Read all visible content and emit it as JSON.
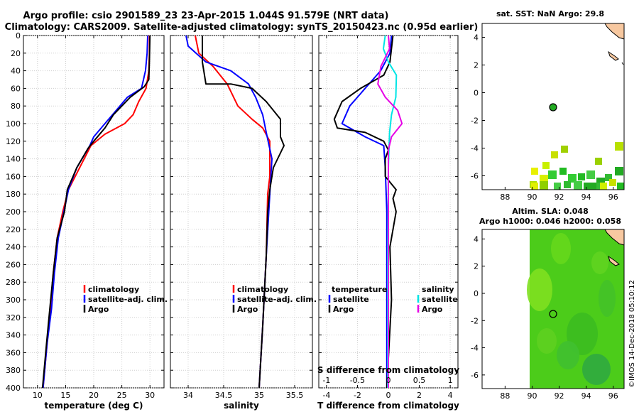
{
  "title": {
    "line1": "Argo profile: csio 2901589_23 23-Apr-2015 1.044S 91.579E (NRT data)",
    "line2": "Climatology: CARS2009. Satellite-adjusted climatology: synTS_20150423.nc (0.95d earlier)"
  },
  "colors": {
    "climatology": "#ff0000",
    "satellite": "#0000ff",
    "argo": "#000000",
    "sat_salinity": "#00e5e5",
    "argo_salinity": "#e600e6",
    "land": "#f7c8a0"
  },
  "depth_ticks": [
    "0",
    "20",
    "40",
    "60",
    "80",
    "100",
    "120",
    "140",
    "160",
    "180",
    "200",
    "220",
    "240",
    "260",
    "280",
    "300",
    "320",
    "340",
    "360",
    "380",
    "400"
  ],
  "chart_data": [
    {
      "type": "line",
      "xlabel": "temperature (deg C)",
      "xlim": [
        7.5,
        32.5
      ],
      "ylim": [
        0,
        400
      ],
      "xticks": [
        "10",
        "15",
        "20",
        "25",
        "30"
      ],
      "legend": [
        "climatology",
        "satellite-adj. clim.",
        "Argo"
      ],
      "series": [
        {
          "name": "climatology",
          "points": [
            [
              29.9,
              0
            ],
            [
              29.9,
              20
            ],
            [
              29.8,
              40
            ],
            [
              29.3,
              60
            ],
            [
              28.0,
              75
            ],
            [
              27.0,
              90
            ],
            [
              25.5,
              100
            ],
            [
              22.0,
              112
            ],
            [
              19.5,
              125
            ],
            [
              17.5,
              150
            ],
            [
              15.5,
              175
            ],
            [
              14.5,
              200
            ],
            [
              13.5,
              230
            ],
            [
              12.8,
              270
            ],
            [
              12.3,
              310
            ],
            [
              11.7,
              350
            ],
            [
              11.0,
              400
            ]
          ]
        },
        {
          "name": "satellite-adj. clim.",
          "points": [
            [
              29.6,
              0
            ],
            [
              29.5,
              20
            ],
            [
              29.2,
              40
            ],
            [
              28.5,
              60
            ],
            [
              26.0,
              70
            ],
            [
              24.0,
              85
            ],
            [
              22.0,
              100
            ],
            [
              20.0,
              115
            ],
            [
              19.3,
              125
            ],
            [
              17.0,
              150
            ],
            [
              15.5,
              175
            ],
            [
              14.7,
              200
            ],
            [
              13.7,
              230
            ],
            [
              13.0,
              270
            ],
            [
              12.5,
              310
            ],
            [
              11.7,
              350
            ],
            [
              11.0,
              400
            ]
          ]
        },
        {
          "name": "Argo",
          "points": [
            [
              30.0,
              0
            ],
            [
              29.9,
              30
            ],
            [
              29.8,
              50
            ],
            [
              29.0,
              58
            ],
            [
              26.5,
              70
            ],
            [
              23.5,
              90
            ],
            [
              22.0,
              105
            ],
            [
              20.0,
              120
            ],
            [
              19.0,
              128
            ],
            [
              17.0,
              150
            ],
            [
              15.3,
              175
            ],
            [
              14.8,
              200
            ],
            [
              13.5,
              230
            ],
            [
              12.8,
              270
            ],
            [
              12.2,
              310
            ],
            [
              11.6,
              350
            ],
            [
              10.9,
              400
            ]
          ]
        }
      ]
    },
    {
      "type": "line",
      "xlabel": "salinity",
      "xlim": [
        33.75,
        35.75
      ],
      "ylim": [
        0,
        400
      ],
      "xticks": [
        "34",
        "34.5",
        "35",
        "35.5"
      ],
      "legend": [
        "climatology",
        "satellite-adj. clim.",
        "Argo"
      ],
      "series": [
        {
          "name": "climatology",
          "points": [
            [
              34.1,
              0
            ],
            [
              34.15,
              20
            ],
            [
              34.35,
              35
            ],
            [
              34.55,
              55
            ],
            [
              34.7,
              80
            ],
            [
              34.9,
              95
            ],
            [
              35.05,
              105
            ],
            [
              35.15,
              120
            ],
            [
              35.15,
              160
            ],
            [
              35.12,
              180
            ],
            [
              35.1,
              250
            ],
            [
              35.05,
              330
            ],
            [
              35.0,
              400
            ]
          ]
        },
        {
          "name": "satellite-adj. clim.",
          "points": [
            [
              33.97,
              0
            ],
            [
              34.0,
              12
            ],
            [
              34.25,
              30
            ],
            [
              34.6,
              40
            ],
            [
              34.85,
              55
            ],
            [
              34.95,
              70
            ],
            [
              35.05,
              90
            ],
            [
              35.1,
              110
            ],
            [
              35.18,
              140
            ],
            [
              35.15,
              180
            ],
            [
              35.1,
              250
            ],
            [
              35.05,
              330
            ],
            [
              35.0,
              400
            ]
          ]
        },
        {
          "name": "Argo",
          "points": [
            [
              34.2,
              0
            ],
            [
              34.2,
              30
            ],
            [
              34.25,
              55
            ],
            [
              34.6,
              55
            ],
            [
              34.9,
              60
            ],
            [
              35.1,
              75
            ],
            [
              35.3,
              95
            ],
            [
              35.3,
              115
            ],
            [
              35.35,
              125
            ],
            [
              35.2,
              150
            ],
            [
              35.15,
              175
            ],
            [
              35.12,
              200
            ],
            [
              35.1,
              250
            ],
            [
              35.05,
              330
            ],
            [
              35.0,
              400
            ]
          ]
        }
      ]
    },
    {
      "type": "line",
      "xlabel": "T difference from climatology",
      "x2label": "S difference from climatology",
      "xlim": [
        -4.5,
        4.5
      ],
      "s_xlim": [
        -1.125,
        1.125
      ],
      "ylim": [
        0,
        400
      ],
      "xticks": [
        "-4",
        "-2",
        "0",
        "2",
        "4"
      ],
      "s_xticks": [
        "-1",
        "-0.5",
        "0",
        "0.5",
        "1"
      ],
      "legend_left_title": "temperature",
      "legend_right_title": "salinity",
      "legend": [
        "satellite",
        "Argo",
        "satellite",
        "Argo"
      ],
      "series": [
        {
          "name": "temperature satellite",
          "points": [
            [
              0.2,
              0
            ],
            [
              0.1,
              20
            ],
            [
              -0.5,
              40
            ],
            [
              -1.5,
              60
            ],
            [
              -2.5,
              80
            ],
            [
              -3.0,
              100
            ],
            [
              -1.5,
              115
            ],
            [
              -0.3,
              125
            ],
            [
              -0.2,
              150
            ],
            [
              -0.1,
              200
            ],
            [
              -0.1,
              300
            ],
            [
              -0.1,
              400
            ]
          ]
        },
        {
          "name": "temperature Argo",
          "points": [
            [
              0.3,
              0
            ],
            [
              0.1,
              30
            ],
            [
              -0.3,
              45
            ],
            [
              -1.8,
              60
            ],
            [
              -3.0,
              75
            ],
            [
              -3.5,
              95
            ],
            [
              -3.3,
              105
            ],
            [
              -1.5,
              110
            ],
            [
              -0.3,
              120
            ],
            [
              0.0,
              130
            ],
            [
              -0.2,
              140
            ],
            [
              -0.2,
              160
            ],
            [
              0.5,
              175
            ],
            [
              0.3,
              185
            ],
            [
              0.5,
              200
            ],
            [
              0.1,
              240
            ],
            [
              0.2,
              300
            ],
            [
              -0.1,
              400
            ]
          ]
        },
        {
          "name": "salinity satellite",
          "points": [
            [
              -0.05,
              0
            ],
            [
              -0.08,
              15
            ],
            [
              0.0,
              30
            ],
            [
              0.13,
              45
            ],
            [
              0.12,
              70
            ],
            [
              0.05,
              90
            ],
            [
              0.02,
              110
            ],
            [
              0.0,
              150
            ],
            [
              -0.01,
              250
            ],
            [
              -0.01,
              400
            ]
          ]
        },
        {
          "name": "salinity Argo",
          "points": [
            [
              0.0,
              0
            ],
            [
              0.02,
              15
            ],
            [
              -0.12,
              35
            ],
            [
              -0.17,
              55
            ],
            [
              -0.05,
              70
            ],
            [
              0.15,
              85
            ],
            [
              0.22,
              100
            ],
            [
              0.05,
              115
            ],
            [
              0.0,
              130
            ],
            [
              0.0,
              200
            ],
            [
              0.0,
              400
            ]
          ]
        }
      ]
    },
    {
      "type": "heatmap",
      "title": "sat. SST: NaN Argo: 29.8",
      "xticks": [
        "88",
        "90",
        "92",
        "94",
        "96"
      ],
      "yticks": [
        "4",
        "2",
        "0",
        "-2",
        "-4",
        "-6"
      ],
      "marker": [
        91.58,
        -1.04
      ]
    },
    {
      "type": "heatmap",
      "title_line1": "Altim. SLA: 0.048",
      "title_line2": "Argo h1000: 0.046 h2000: 0.058",
      "xticks": [
        "88",
        "90",
        "92",
        "94",
        "96"
      ],
      "yticks": [
        "4",
        "2",
        "0",
        "-2",
        "-4",
        "-6"
      ],
      "marker": [
        91.58,
        -1.04
      ]
    }
  ],
  "footer": "©IMOS 14-Dec-2018 05:10:12"
}
